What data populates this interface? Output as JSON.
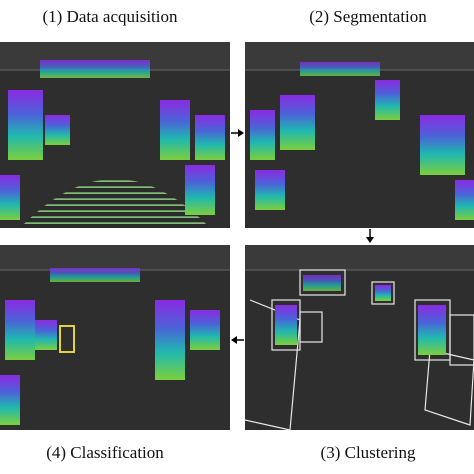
{
  "panels": [
    {
      "label": "(1) Data acquisition"
    },
    {
      "label": "(2) Segmentation"
    },
    {
      "label": "(3) Clustering"
    },
    {
      "label": "(4) Classification"
    }
  ]
}
